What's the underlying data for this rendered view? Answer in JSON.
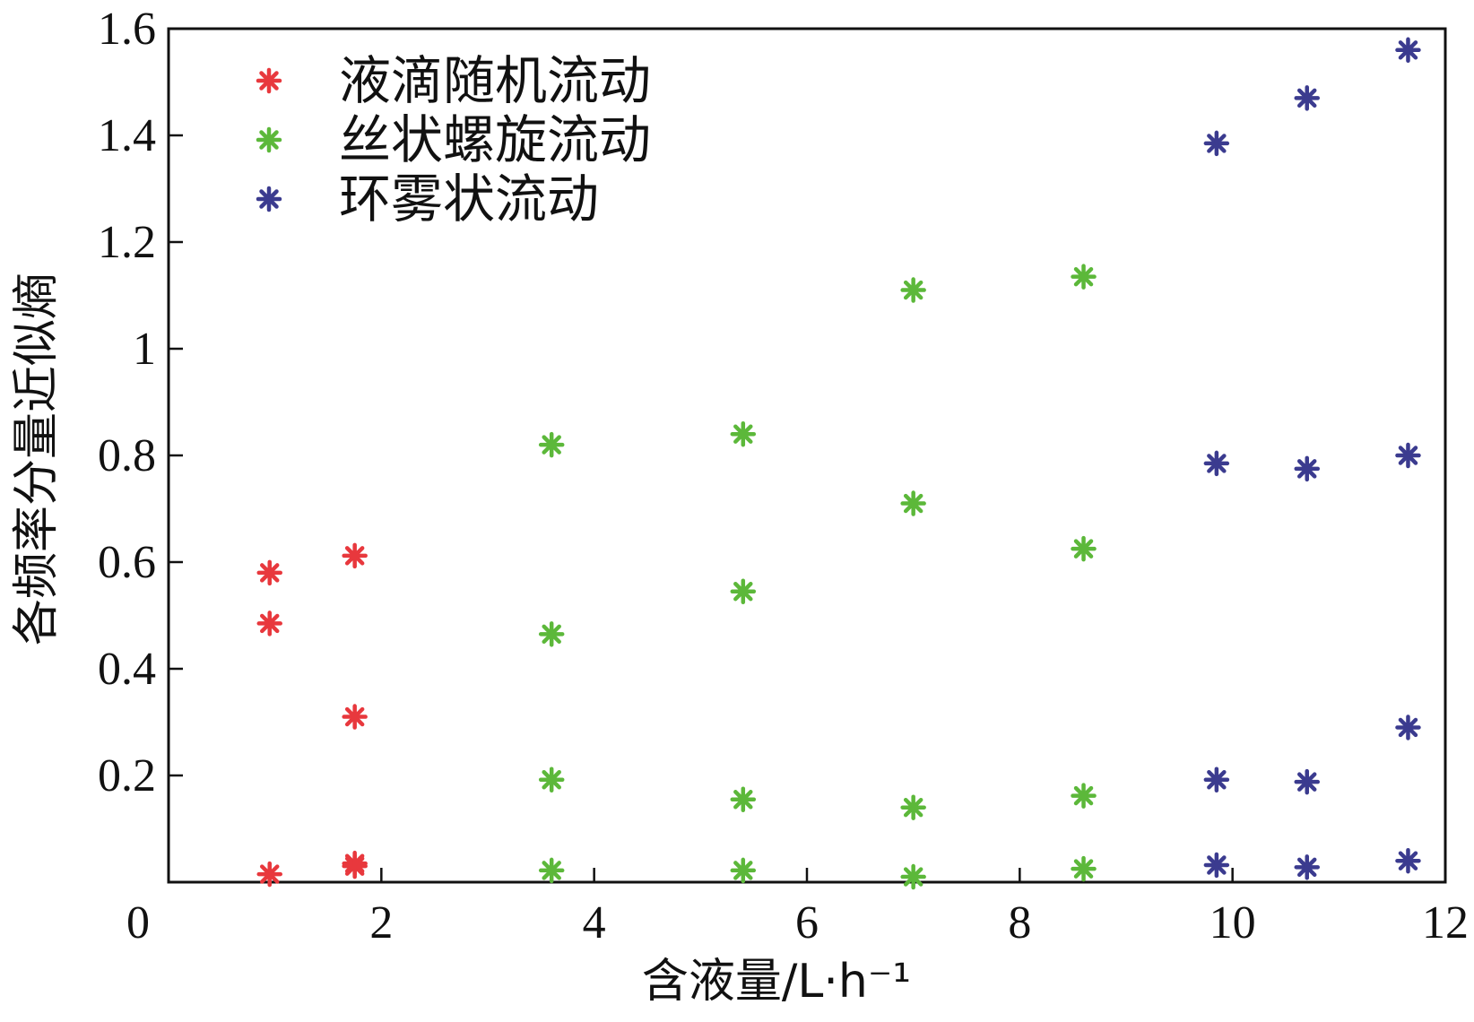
{
  "chart_data": {
    "type": "scatter",
    "title": "",
    "xlabel": "含液量/L·h⁻¹",
    "ylabel": "各频率分量近似熵",
    "xlim": [
      0,
      12
    ],
    "ylim": [
      0,
      1.6
    ],
    "x_ticks": [
      "0",
      "2",
      "4",
      "6",
      "8",
      "10",
      "12"
    ],
    "y_ticks": [
      "0.2",
      "0.4",
      "0.6",
      "0.8",
      "1",
      "1.2",
      "1.4",
      "1.6"
    ],
    "grid": false,
    "legend_position": "top-left",
    "marker": "asterisk",
    "series": [
      {
        "name": "液滴随机流动",
        "color": "#e8383d",
        "points": [
          [
            0.95,
            0.58
          ],
          [
            0.95,
            0.485
          ],
          [
            0.95,
            0.015
          ],
          [
            1.75,
            0.612
          ],
          [
            1.75,
            0.31
          ],
          [
            1.75,
            0.035
          ],
          [
            1.75,
            0.03
          ]
        ]
      },
      {
        "name": "丝状螺旋流动",
        "color": "#5cb83a",
        "points": [
          [
            3.6,
            0.82
          ],
          [
            3.6,
            0.465
          ],
          [
            3.6,
            0.192
          ],
          [
            3.6,
            0.022
          ],
          [
            5.4,
            0.84
          ],
          [
            5.4,
            0.545
          ],
          [
            5.4,
            0.155
          ],
          [
            5.4,
            0.022
          ],
          [
            7.0,
            1.11
          ],
          [
            7.0,
            0.71
          ],
          [
            7.0,
            0.14
          ],
          [
            7.0,
            0.01
          ],
          [
            8.6,
            1.135
          ],
          [
            8.6,
            0.625
          ],
          [
            8.6,
            0.162
          ],
          [
            8.6,
            0.025
          ]
        ]
      },
      {
        "name": "环雾状流动",
        "color": "#3b3b8f",
        "points": [
          [
            9.85,
            1.385
          ],
          [
            9.85,
            0.785
          ],
          [
            9.85,
            0.192
          ],
          [
            9.85,
            0.032
          ],
          [
            10.7,
            1.47
          ],
          [
            10.7,
            0.775
          ],
          [
            10.7,
            0.188
          ],
          [
            10.7,
            0.028
          ],
          [
            11.65,
            1.56
          ],
          [
            11.65,
            0.8
          ],
          [
            11.65,
            0.29
          ],
          [
            11.65,
            0.04
          ]
        ]
      }
    ]
  }
}
